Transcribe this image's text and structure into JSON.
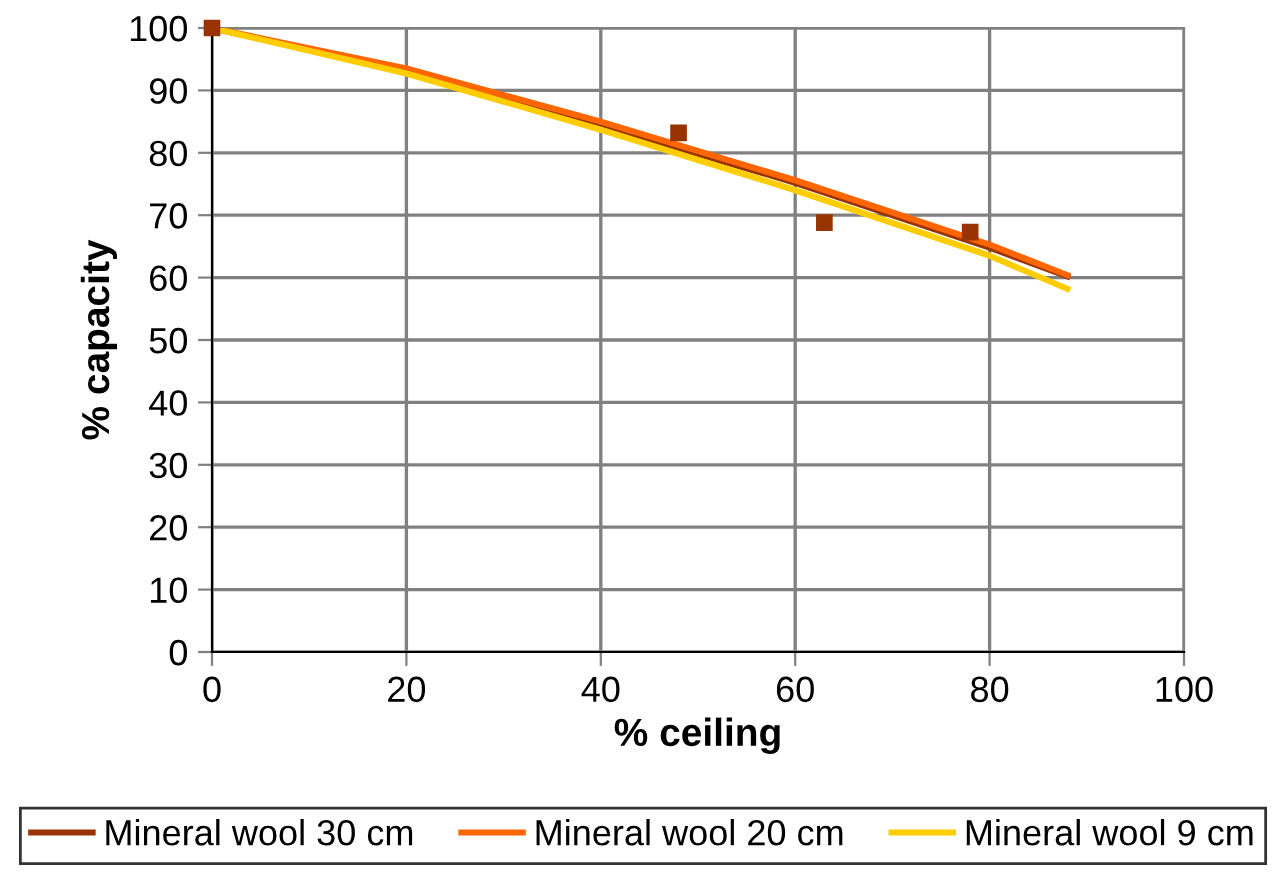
{
  "chart_data": {
    "type": "line",
    "xlabel": "% ceiling",
    "ylabel": "% capacity",
    "xlim": [
      0,
      100
    ],
    "xticks": [
      0,
      20,
      40,
      60,
      80,
      100
    ],
    "ylim": [
      0,
      100
    ],
    "yticks": [
      0,
      10,
      20,
      30,
      40,
      50,
      60,
      70,
      80,
      90,
      100
    ],
    "grid": true,
    "legend": "bottom",
    "marker": "none",
    "line_style": "solid",
    "series": [
      {
        "name": "Mineral wool 30 cm",
        "color": "#993300",
        "x": [
          0,
          20,
          40,
          60,
          80,
          88
        ],
        "values": [
          100,
          93.0,
          84.5,
          75.2,
          64.8,
          60.2
        ]
      },
      {
        "name": "Mineral wool 20 cm",
        "color": "#ff6600",
        "x": [
          0,
          20,
          40,
          60,
          80,
          88
        ],
        "values": [
          100,
          93.5,
          85.0,
          75.6,
          65.3,
          60.4
        ]
      },
      {
        "name": "Mineral wool 9 cm",
        "color": "#ffcc00",
        "x": [
          0,
          20,
          40,
          60,
          80,
          88
        ],
        "values": [
          100,
          92.7,
          83.7,
          74.0,
          63.5,
          58.2
        ]
      },
      {
        "type": "scatter",
        "marker": "square",
        "color": "#993300",
        "x": [
          0,
          48,
          63,
          78
        ],
        "values": [
          100,
          83.2,
          68.8,
          67.3
        ]
      }
    ]
  }
}
